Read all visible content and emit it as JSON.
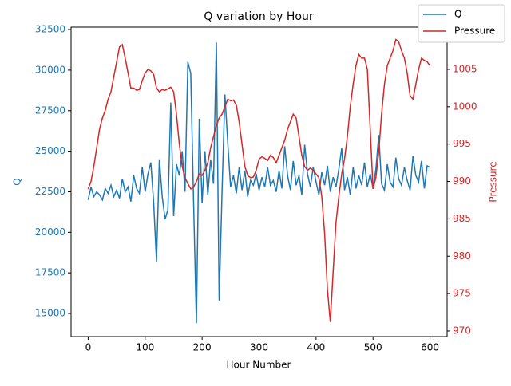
{
  "chart_data": {
    "type": "line",
    "title": "Q variation by Hour",
    "xlabel": "Hour Number",
    "ylabel": "Q",
    "y2label": "Pressure",
    "legend": "upper right",
    "xlim": [
      -30,
      630
    ],
    "xticks": [
      0,
      100,
      200,
      300,
      400,
      500,
      600
    ],
    "ylim": [
      13575,
      32650
    ],
    "yticks": [
      15000,
      17500,
      20000,
      22500,
      25000,
      27500,
      30000,
      32500
    ],
    "y2lim": [
      969.25,
      1010.65
    ],
    "y2ticks": [
      970,
      975,
      980,
      985,
      990,
      995,
      1000,
      1005
    ],
    "x": [
      0,
      5,
      10,
      15,
      20,
      25,
      30,
      35,
      40,
      45,
      50,
      55,
      60,
      65,
      70,
      75,
      80,
      85,
      90,
      95,
      100,
      105,
      110,
      115,
      120,
      125,
      130,
      135,
      140,
      145,
      150,
      155,
      160,
      165,
      170,
      175,
      180,
      185,
      190,
      195,
      200,
      205,
      210,
      215,
      220,
      225,
      230,
      235,
      240,
      245,
      250,
      255,
      260,
      265,
      270,
      275,
      280,
      285,
      290,
      295,
      300,
      305,
      310,
      315,
      320,
      325,
      330,
      335,
      340,
      345,
      350,
      355,
      360,
      365,
      370,
      375,
      380,
      385,
      390,
      395,
      400,
      405,
      410,
      415,
      420,
      425,
      430,
      435,
      440,
      445,
      450,
      455,
      460,
      465,
      470,
      475,
      480,
      485,
      490,
      495,
      500,
      505,
      510,
      515,
      520,
      525,
      530,
      535,
      540,
      545,
      550,
      555,
      560,
      565,
      570,
      575,
      580,
      585,
      590,
      595,
      600
    ],
    "series": [
      {
        "name": "Q",
        "color": "#1f77b4",
        "axis": "y",
        "values": [
          22000,
          22800,
          22200,
          22500,
          22300,
          22000,
          22700,
          22400,
          22900,
          22200,
          22600,
          22100,
          23300,
          22500,
          22800,
          21900,
          23500,
          22700,
          22400,
          24000,
          22500,
          23600,
          24300,
          21800,
          18200,
          24500,
          22200,
          20800,
          21400,
          28000,
          21000,
          24200,
          23500,
          25000,
          22500,
          30500,
          29800,
          22000,
          14400,
          27000,
          21800,
          25000,
          22300,
          24500,
          23000,
          31700,
          15800,
          22500,
          28500,
          25500,
          22800,
          23500,
          22400,
          24000,
          22600,
          23800,
          22200,
          23200,
          22900,
          23600,
          22600,
          23400,
          22800,
          24000,
          22900,
          23200,
          22500,
          23800,
          22700,
          25300,
          23500,
          22600,
          24400,
          22900,
          23500,
          22300,
          25400,
          23600,
          22800,
          24000,
          23100,
          22300,
          23700,
          22900,
          24100,
          22500,
          23400,
          22800,
          23900,
          25200,
          22600,
          23400,
          22300,
          24000,
          22700,
          23500,
          22900,
          24300,
          22800,
          23600,
          22700,
          23900,
          26000,
          23000,
          22600,
          24200,
          23100,
          22800,
          24600,
          23300,
          22900,
          24000,
          23200,
          22600,
          24700,
          23500,
          23100,
          24400,
          22700,
          24100,
          24000
        ]
      },
      {
        "name": "Pressure",
        "color": "#d62728",
        "axis": "y2",
        "values": [
          989,
          990,
          992,
          994.5,
          997,
          998.5,
          999.5,
          1001,
          1002,
          1004,
          1006,
          1008,
          1008.3,
          1006.5,
          1004.5,
          1002.5,
          1002.5,
          1002.2,
          1002.3,
          1003.5,
          1004.5,
          1005,
          1004.8,
          1004.3,
          1002.5,
          1002,
          1002.3,
          1002.2,
          1002.4,
          1002.6,
          1002,
          999,
          995,
          992,
          990.5,
          989.7,
          989,
          989.2,
          990,
          991,
          990.8,
          991.5,
          992.5,
          994.5,
          996,
          997.5,
          998.5,
          999,
          1000,
          1001,
          1000.8,
          1000.9,
          1000.2,
          998,
          995,
          992,
          990.8,
          990.5,
          990.6,
          991.5,
          993,
          993.3,
          993.1,
          992.8,
          993.5,
          993.2,
          992.5,
          993.5,
          994.5,
          995.5,
          997,
          998,
          999,
          998.5,
          996,
          993.5,
          992,
          991.5,
          991.8,
          991.5,
          991,
          990.5,
          988,
          983,
          975.5,
          971.2,
          978,
          984.5,
          988,
          991,
          993,
          996,
          1000,
          1003,
          1005.5,
          1007,
          1006.5,
          1006.5,
          1005,
          997,
          989,
          990.5,
          994,
          999,
          1003,
          1005.5,
          1006.5,
          1007.5,
          1009,
          1008.7,
          1007.5,
          1006.5,
          1004.5,
          1001.5,
          1001,
          1003,
          1005,
          1006.5,
          1006.2,
          1006,
          1005.5
        ]
      }
    ]
  }
}
